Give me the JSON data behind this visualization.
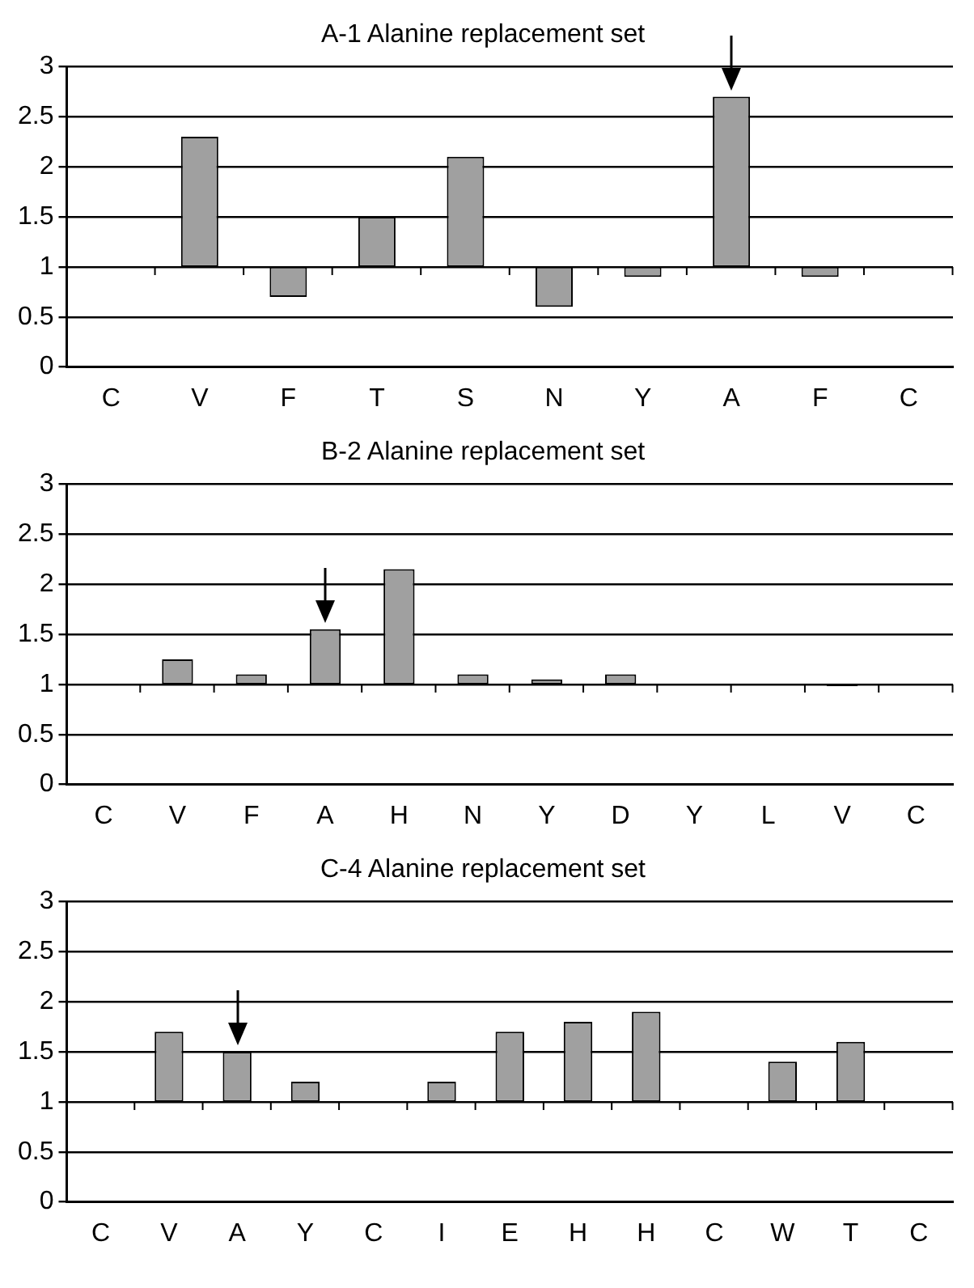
{
  "chart_data": [
    {
      "type": "bar",
      "title": "A-1 Alanine replacement set",
      "categories": [
        "C",
        "V",
        "F",
        "T",
        "S",
        "N",
        "Y",
        "A",
        "F",
        "C"
      ],
      "values": [
        null,
        1.3,
        -0.3,
        0.5,
        1.1,
        -0.4,
        -0.1,
        1.7,
        -0.1,
        null
      ],
      "base": [
        null,
        1,
        1,
        1,
        1,
        1,
        1,
        1,
        1,
        null
      ],
      "color": "#a0a0a0",
      "ylim": [
        0,
        3
      ],
      "yticks": [
        0,
        0.5,
        1,
        1.5,
        2,
        2.5,
        3
      ],
      "grid": "y",
      "legend": false
    },
    {
      "type": "bar",
      "title": "B-2 Alanine replacement set",
      "categories": [
        "C",
        "V",
        "F",
        "A",
        "H",
        "N",
        "Y",
        "D",
        "Y",
        "L",
        "V",
        "C"
      ],
      "values": [
        null,
        0.25,
        0.1,
        0.55,
        1.15,
        0.1,
        0.05,
        0.1,
        null,
        null,
        -0.02,
        null
      ],
      "base": [
        null,
        1,
        1,
        1,
        1,
        1,
        1,
        1,
        null,
        null,
        1,
        null
      ],
      "colors": [
        "#a0a0a0",
        "#a0a0a0",
        "#a0a0a0",
        "#a0a0a0",
        "#a0a0a0",
        "#a0a0a0",
        "#a0a0a0",
        "#a0a0a0",
        "#a0a0a0",
        "#a0a0a0",
        "#000000",
        "#a0a0a0"
      ],
      "ylim": [
        0,
        3
      ],
      "yticks": [
        0,
        0.5,
        1,
        1.5,
        2,
        2.5,
        3
      ],
      "grid": "y",
      "legend": false
    },
    {
      "type": "bar",
      "title": "C-4 Alanine replacement set",
      "categories": [
        "C",
        "V",
        "A",
        "Y",
        "C",
        "I",
        "E",
        "H",
        "H",
        "C",
        "W",
        "T",
        "C"
      ],
      "values": [
        null,
        0.7,
        0.5,
        0.2,
        null,
        0.2,
        0.7,
        0.8,
        0.9,
        null,
        0.4,
        0.6,
        null
      ],
      "base": [
        null,
        1,
        1,
        1,
        null,
        1,
        1,
        1,
        1,
        null,
        1,
        1,
        null
      ],
      "color": "#a0a0a0",
      "ylim": [
        0,
        3
      ],
      "yticks": [
        0,
        0.5,
        1,
        1.5,
        2,
        2.5,
        3
      ],
      "grid": "y",
      "legend": false
    }
  ]
}
